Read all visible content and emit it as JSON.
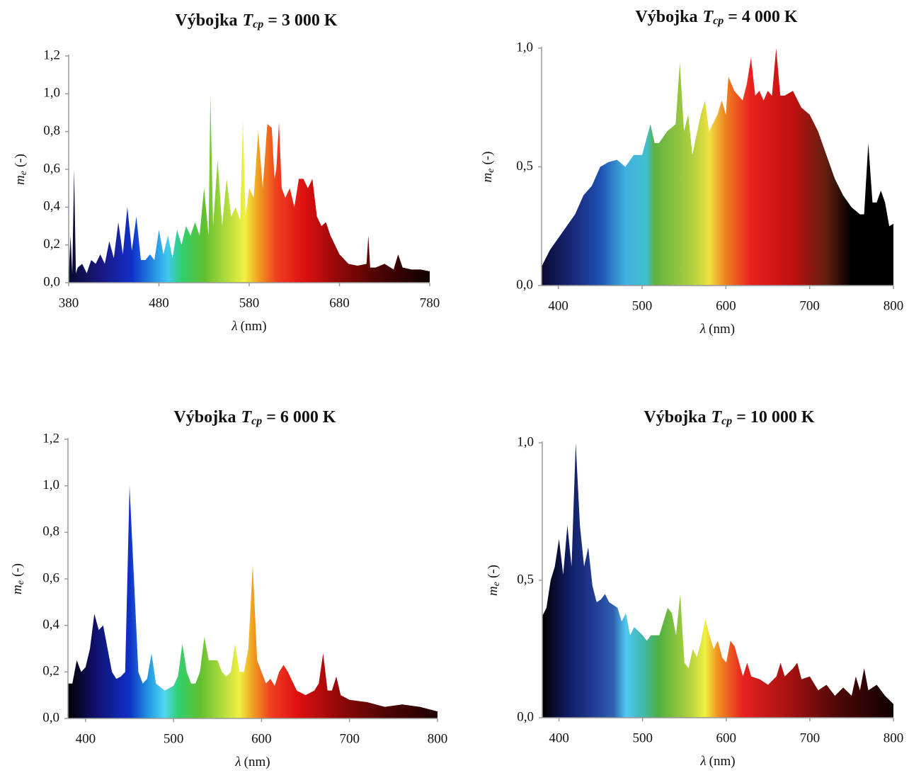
{
  "chart_data": [
    {
      "type": "area",
      "title": {
        "text": "Výbojka",
        "symbol": "T",
        "subscript": "cp",
        "value": "= 3 000 K"
      },
      "xlabel": {
        "symbol": "λ",
        "unit": "(nm)"
      },
      "ylabel": {
        "symbol": "m",
        "subscript": "e",
        "unit": "(-)"
      },
      "xlim": [
        380,
        780
      ],
      "ylim": [
        0,
        1.2
      ],
      "xticks": [
        380,
        480,
        580,
        680,
        780
      ],
      "yticks": [
        {
          "value": 0,
          "label": "0,0"
        },
        {
          "value": 0.2,
          "label": "0,2"
        },
        {
          "value": 0.4,
          "label": "0,4"
        },
        {
          "value": 0.6,
          "label": "0,6"
        },
        {
          "value": 0.8,
          "label": "0,8"
        },
        {
          "value": 1.0,
          "label": "1,0"
        },
        {
          "value": 1.2,
          "label": "1,2"
        }
      ],
      "grid": false,
      "colors": [
        {
          "x": 380,
          "color": "#0a0a30"
        },
        {
          "x": 420,
          "color": "#1a1a8a"
        },
        {
          "x": 450,
          "color": "#1030c8"
        },
        {
          "x": 470,
          "color": "#2080e0"
        },
        {
          "x": 490,
          "color": "#40c8f0"
        },
        {
          "x": 505,
          "color": "#30d070"
        },
        {
          "x": 530,
          "color": "#60c030"
        },
        {
          "x": 560,
          "color": "#c0e040"
        },
        {
          "x": 575,
          "color": "#f0f040"
        },
        {
          "x": 590,
          "color": "#f0a020"
        },
        {
          "x": 610,
          "color": "#f04020"
        },
        {
          "x": 640,
          "color": "#e01010"
        },
        {
          "x": 680,
          "color": "#900808"
        },
        {
          "x": 720,
          "color": "#500404"
        },
        {
          "x": 780,
          "color": "#100000"
        }
      ],
      "x": [
        380,
        382,
        384,
        386,
        388,
        390,
        395,
        400,
        405,
        410,
        415,
        420,
        425,
        430,
        435,
        440,
        445,
        450,
        455,
        460,
        465,
        470,
        475,
        480,
        485,
        490,
        495,
        500,
        505,
        510,
        515,
        520,
        525,
        530,
        535,
        537,
        540,
        545,
        550,
        555,
        560,
        565,
        570,
        573,
        576,
        580,
        585,
        590,
        595,
        600,
        605,
        608,
        610,
        613,
        616,
        620,
        625,
        630,
        635,
        640,
        645,
        650,
        655,
        660,
        665,
        670,
        675,
        680,
        690,
        700,
        710,
        712,
        714,
        720,
        730,
        740,
        745,
        750,
        760,
        770,
        780
      ],
      "values": [
        0.02,
        0.25,
        0.05,
        0.6,
        0.05,
        0.08,
        0.1,
        0.05,
        0.12,
        0.1,
        0.15,
        0.1,
        0.22,
        0.13,
        0.32,
        0.15,
        0.4,
        0.17,
        0.35,
        0.12,
        0.12,
        0.15,
        0.12,
        0.28,
        0.15,
        0.25,
        0.13,
        0.28,
        0.2,
        0.3,
        0.25,
        0.32,
        0.25,
        0.5,
        0.25,
        1.0,
        0.3,
        0.65,
        0.3,
        0.55,
        0.35,
        0.4,
        0.33,
        0.86,
        0.35,
        0.5,
        0.45,
        0.8,
        0.5,
        0.84,
        0.82,
        0.55,
        0.6,
        0.85,
        0.5,
        0.45,
        0.5,
        0.4,
        0.55,
        0.55,
        0.5,
        0.55,
        0.35,
        0.3,
        0.32,
        0.25,
        0.2,
        0.15,
        0.1,
        0.09,
        0.1,
        0.25,
        0.08,
        0.08,
        0.1,
        0.07,
        0.15,
        0.08,
        0.07,
        0.07,
        0.06
      ]
    },
    {
      "type": "area",
      "title": {
        "text": "Výbojka",
        "symbol": "T",
        "subscript": "cp",
        "value": "= 4 000 K"
      },
      "xlabel": {
        "symbol": "λ",
        "unit": "(nm)"
      },
      "ylabel": {
        "symbol": "m",
        "subscript": "e",
        "unit": "(-)"
      },
      "xlim": [
        380,
        800
      ],
      "ylim": [
        0,
        1.0
      ],
      "xticks": [
        400,
        500,
        600,
        700,
        800
      ],
      "yticks": [
        {
          "value": 0,
          "label": "0,0"
        },
        {
          "value": 0.5,
          "label": "0,5"
        },
        {
          "value": 1.0,
          "label": "1,0"
        }
      ],
      "grid": false,
      "colors": [
        {
          "x": 380,
          "color": "#0a0a30"
        },
        {
          "x": 420,
          "color": "#1a2a80"
        },
        {
          "x": 450,
          "color": "#1e50b0"
        },
        {
          "x": 480,
          "color": "#40b0e0"
        },
        {
          "x": 505,
          "color": "#40c0d0"
        },
        {
          "x": 515,
          "color": "#60b040"
        },
        {
          "x": 560,
          "color": "#b0d040"
        },
        {
          "x": 580,
          "color": "#f0e040"
        },
        {
          "x": 600,
          "color": "#f08020"
        },
        {
          "x": 630,
          "color": "#e82020"
        },
        {
          "x": 680,
          "color": "#c01010"
        },
        {
          "x": 720,
          "color": "#602010"
        },
        {
          "x": 750,
          "color": "#000000"
        },
        {
          "x": 800,
          "color": "#000000"
        }
      ],
      "x": [
        380,
        390,
        400,
        410,
        420,
        430,
        440,
        450,
        460,
        470,
        480,
        490,
        500,
        510,
        515,
        520,
        530,
        540,
        545,
        550,
        555,
        560,
        570,
        575,
        580,
        590,
        595,
        600,
        603,
        610,
        620,
        625,
        630,
        635,
        640,
        645,
        650,
        655,
        660,
        665,
        670,
        680,
        690,
        700,
        710,
        720,
        730,
        740,
        750,
        760,
        765,
        770,
        775,
        780,
        785,
        790,
        795,
        800
      ],
      "values": [
        0.08,
        0.15,
        0.2,
        0.25,
        0.3,
        0.38,
        0.42,
        0.5,
        0.52,
        0.53,
        0.5,
        0.55,
        0.55,
        0.68,
        0.6,
        0.6,
        0.65,
        0.68,
        0.94,
        0.65,
        0.72,
        0.55,
        0.72,
        0.78,
        0.65,
        0.72,
        0.78,
        0.72,
        0.88,
        0.82,
        0.78,
        0.85,
        0.96,
        0.8,
        0.82,
        0.78,
        0.82,
        0.8,
        1.0,
        0.8,
        0.8,
        0.82,
        0.75,
        0.72,
        0.65,
        0.55,
        0.45,
        0.38,
        0.33,
        0.3,
        0.3,
        0.6,
        0.35,
        0.35,
        0.4,
        0.35,
        0.25,
        0.26
      ]
    },
    {
      "type": "area",
      "title": {
        "text": "Výbojka",
        "symbol": "T",
        "subscript": "cp",
        "value": "= 6 000 K"
      },
      "xlabel": {
        "symbol": "λ",
        "unit": "(nm)"
      },
      "ylabel": {
        "symbol": "m",
        "subscript": "e",
        "unit": "(-)"
      },
      "xlim": [
        380,
        800
      ],
      "ylim": [
        0,
        1.2
      ],
      "xticks": [
        400,
        500,
        600,
        700,
        800
      ],
      "yticks": [
        {
          "value": 0,
          "label": "0,0"
        },
        {
          "value": 0.2,
          "label": "0,2"
        },
        {
          "value": 0.4,
          "label": "0,4"
        },
        {
          "value": 0.6,
          "label": "0,6"
        },
        {
          "value": 0.8,
          "label": "0,8"
        },
        {
          "value": 1.0,
          "label": "1,0"
        },
        {
          "value": 1.2,
          "label": "1,2"
        }
      ],
      "grid": false,
      "colors": [
        {
          "x": 380,
          "color": "#000000"
        },
        {
          "x": 410,
          "color": "#10106a"
        },
        {
          "x": 450,
          "color": "#1030c8"
        },
        {
          "x": 470,
          "color": "#2090e0"
        },
        {
          "x": 490,
          "color": "#50d8f0"
        },
        {
          "x": 505,
          "color": "#30d070"
        },
        {
          "x": 530,
          "color": "#60c030"
        },
        {
          "x": 560,
          "color": "#c0e040"
        },
        {
          "x": 575,
          "color": "#f0f040"
        },
        {
          "x": 590,
          "color": "#f0a020"
        },
        {
          "x": 610,
          "color": "#f04020"
        },
        {
          "x": 640,
          "color": "#e01010"
        },
        {
          "x": 690,
          "color": "#900808"
        },
        {
          "x": 740,
          "color": "#500404"
        },
        {
          "x": 800,
          "color": "#200000"
        }
      ],
      "x": [
        380,
        385,
        390,
        395,
        400,
        405,
        410,
        415,
        420,
        425,
        430,
        435,
        440,
        445,
        450,
        455,
        460,
        465,
        470,
        475,
        480,
        490,
        500,
        505,
        510,
        515,
        520,
        525,
        530,
        535,
        540,
        545,
        550,
        555,
        560,
        565,
        570,
        575,
        580,
        585,
        590,
        595,
        600,
        605,
        610,
        615,
        620,
        625,
        630,
        640,
        650,
        660,
        665,
        670,
        675,
        680,
        685,
        690,
        700,
        720,
        740,
        760,
        770,
        780,
        800
      ],
      "values": [
        0.15,
        0.15,
        0.25,
        0.2,
        0.22,
        0.3,
        0.45,
        0.38,
        0.4,
        0.3,
        0.2,
        0.17,
        0.18,
        0.2,
        1.0,
        0.6,
        0.2,
        0.15,
        0.17,
        0.28,
        0.15,
        0.12,
        0.14,
        0.18,
        0.32,
        0.2,
        0.15,
        0.15,
        0.2,
        0.35,
        0.25,
        0.25,
        0.25,
        0.2,
        0.18,
        0.2,
        0.32,
        0.2,
        0.2,
        0.3,
        0.66,
        0.25,
        0.2,
        0.15,
        0.17,
        0.14,
        0.2,
        0.23,
        0.2,
        0.12,
        0.1,
        0.12,
        0.15,
        0.28,
        0.12,
        0.12,
        0.18,
        0.1,
        0.08,
        0.07,
        0.05,
        0.06,
        0.055,
        0.05,
        0.03
      ]
    },
    {
      "type": "area",
      "title": {
        "text": "Výbojka",
        "symbol": "T",
        "subscript": "cp",
        "value": "= 10 000 K"
      },
      "xlabel": {
        "symbol": "λ",
        "unit": "(nm)"
      },
      "ylabel": {
        "symbol": "m",
        "subscript": "e",
        "unit": "(-)"
      },
      "xlim": [
        380,
        800
      ],
      "ylim": [
        0,
        1.0
      ],
      "xticks": [
        400,
        500,
        600,
        700,
        800
      ],
      "yticks": [
        {
          "value": 0,
          "label": "0,0"
        },
        {
          "value": 0.5,
          "label": "0,5"
        },
        {
          "value": 1.0,
          "label": "1,0"
        }
      ],
      "grid": false,
      "colors": [
        {
          "x": 380,
          "color": "#000000"
        },
        {
          "x": 410,
          "color": "#101a60"
        },
        {
          "x": 440,
          "color": "#203a90"
        },
        {
          "x": 465,
          "color": "#3060b0"
        },
        {
          "x": 480,
          "color": "#50c8f0"
        },
        {
          "x": 500,
          "color": "#40b8b0"
        },
        {
          "x": 520,
          "color": "#50b040"
        },
        {
          "x": 555,
          "color": "#b0d040"
        },
        {
          "x": 575,
          "color": "#f0f040"
        },
        {
          "x": 590,
          "color": "#f09020"
        },
        {
          "x": 620,
          "color": "#e82020"
        },
        {
          "x": 680,
          "color": "#a01010"
        },
        {
          "x": 730,
          "color": "#500808"
        },
        {
          "x": 800,
          "color": "#100000"
        }
      ],
      "x": [
        380,
        385,
        390,
        395,
        400,
        405,
        410,
        415,
        420,
        425,
        430,
        435,
        440,
        445,
        450,
        455,
        460,
        470,
        475,
        480,
        485,
        490,
        500,
        505,
        510,
        520,
        530,
        535,
        540,
        545,
        550,
        555,
        560,
        565,
        570,
        575,
        580,
        585,
        590,
        595,
        600,
        605,
        610,
        620,
        625,
        630,
        640,
        650,
        660,
        665,
        670,
        680,
        685,
        690,
        700,
        710,
        720,
        730,
        740,
        750,
        755,
        760,
        765,
        770,
        780,
        790,
        800
      ],
      "values": [
        0.37,
        0.4,
        0.5,
        0.55,
        0.65,
        0.52,
        0.7,
        0.55,
        1.0,
        0.7,
        0.55,
        0.62,
        0.48,
        0.42,
        0.43,
        0.45,
        0.42,
        0.4,
        0.35,
        0.38,
        0.3,
        0.33,
        0.3,
        0.28,
        0.3,
        0.3,
        0.4,
        0.38,
        0.3,
        0.45,
        0.2,
        0.18,
        0.25,
        0.22,
        0.28,
        0.36,
        0.3,
        0.25,
        0.28,
        0.22,
        0.2,
        0.28,
        0.26,
        0.15,
        0.2,
        0.15,
        0.14,
        0.12,
        0.15,
        0.2,
        0.15,
        0.18,
        0.2,
        0.14,
        0.15,
        0.1,
        0.12,
        0.08,
        0.11,
        0.08,
        0.15,
        0.1,
        0.18,
        0.1,
        0.12,
        0.08,
        0.05
      ]
    }
  ]
}
